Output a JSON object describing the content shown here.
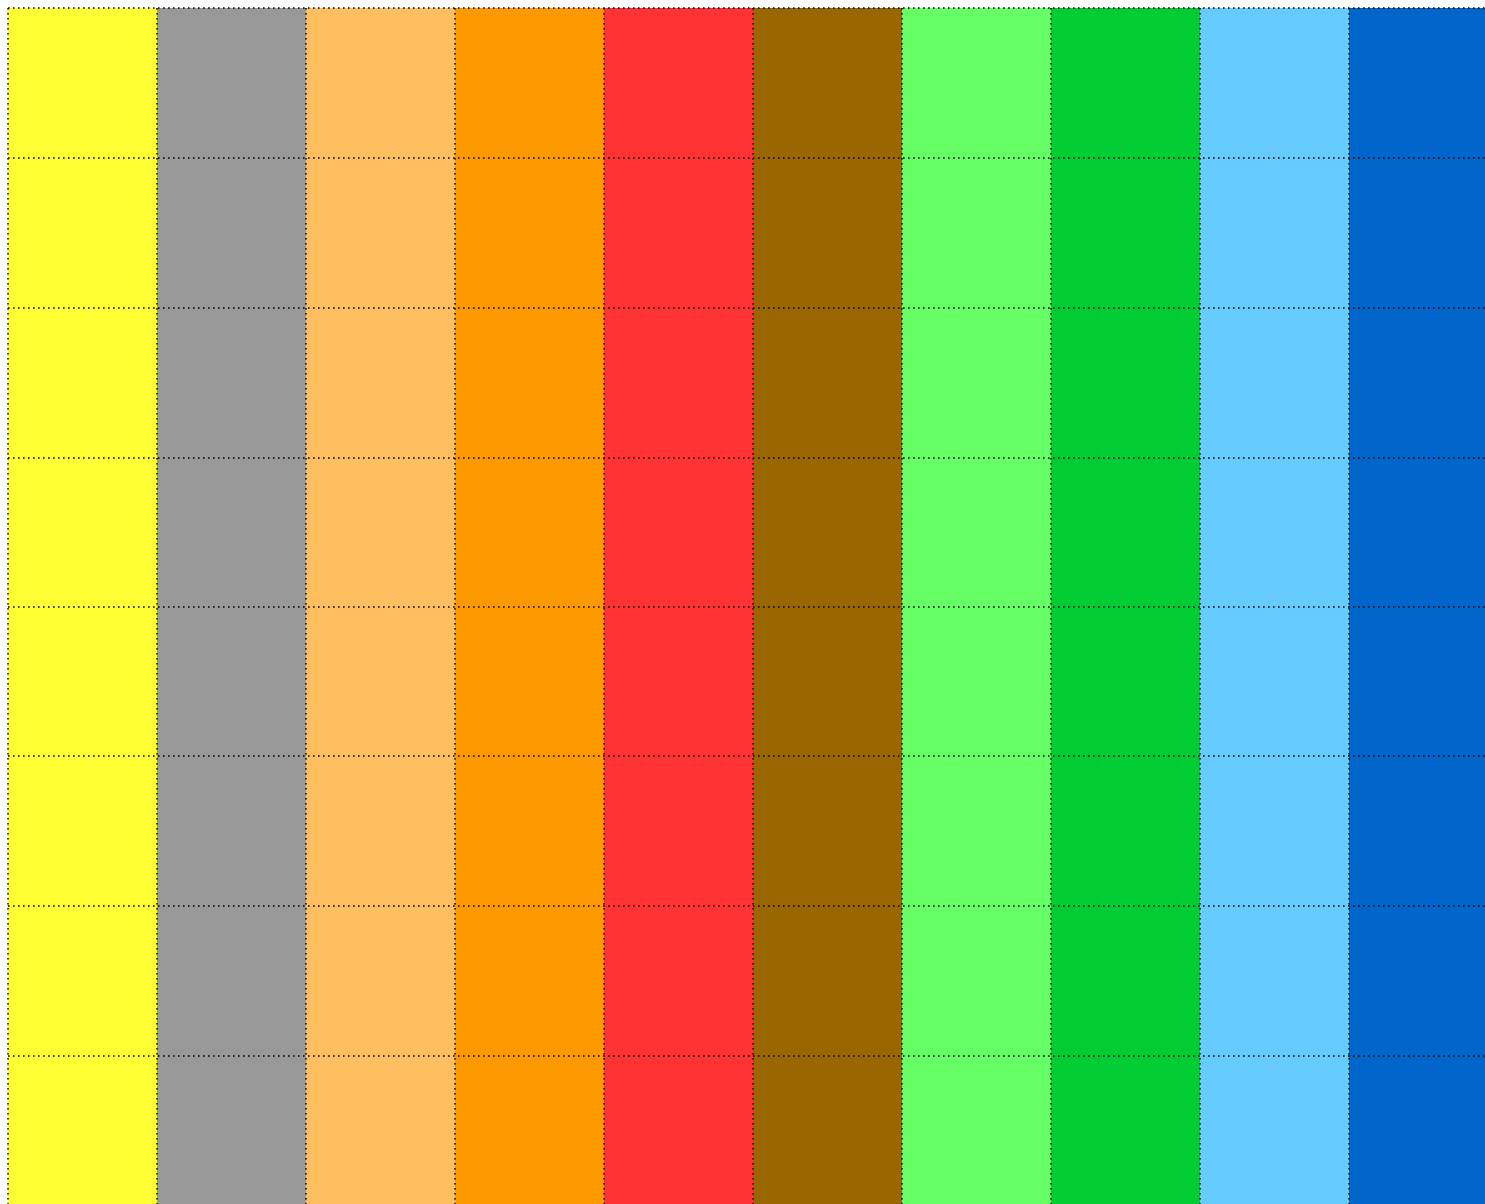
{
  "stripes": [
    {
      "color": "#ffff33"
    },
    {
      "color": "#999999"
    },
    {
      "color": "#ffbf60"
    },
    {
      "color": "#ff9900"
    },
    {
      "color": "#ff3333"
    },
    {
      "color": "#996600"
    },
    {
      "color": "#66ff66"
    },
    {
      "color": "#00cc33"
    },
    {
      "color": "#66ccff"
    },
    {
      "color": "#0066cc"
    }
  ],
  "grid": {
    "style": "dotted",
    "color": "#000000"
  }
}
